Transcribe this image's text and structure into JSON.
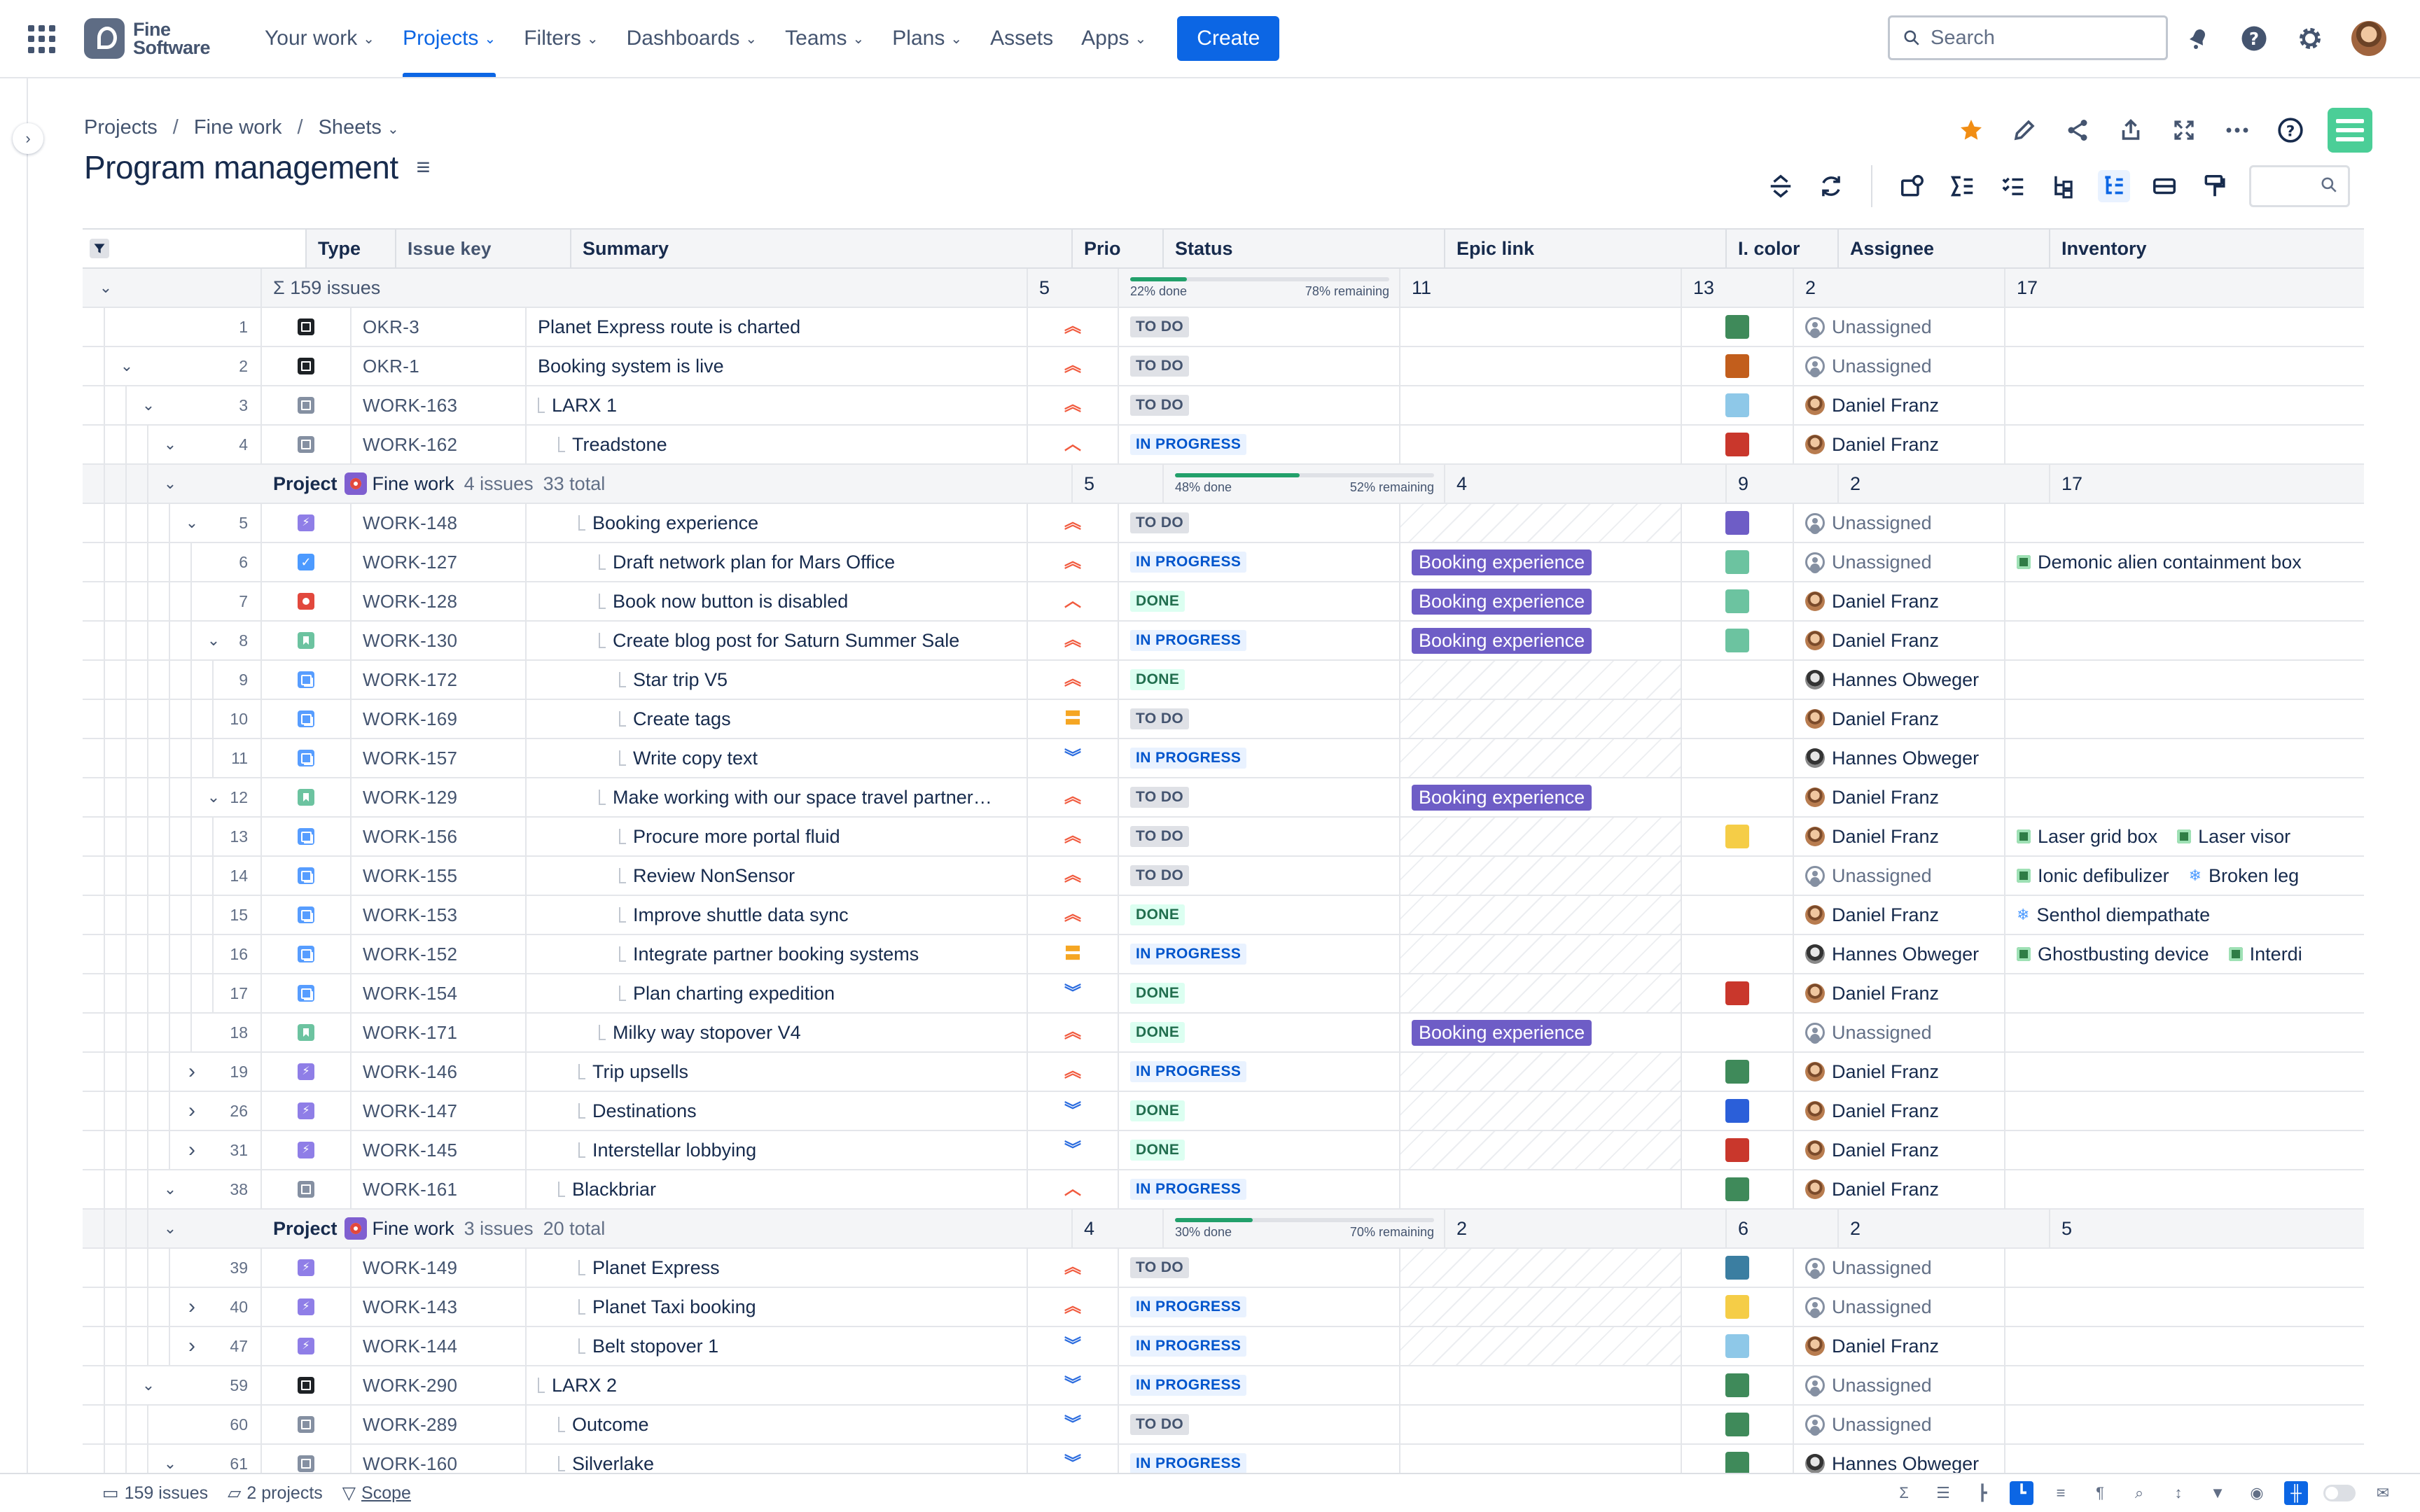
{
  "nav": {
    "brand": "Fine Software",
    "brand_line1": "Fine",
    "brand_line2": "Software",
    "items": [
      {
        "label": "Your work",
        "dropdown": true,
        "active": false
      },
      {
        "label": "Projects",
        "dropdown": true,
        "active": true
      },
      {
        "label": "Filters",
        "dropdown": true,
        "active": false
      },
      {
        "label": "Dashboards",
        "dropdown": true,
        "active": false
      },
      {
        "label": "Teams",
        "dropdown": true,
        "active": false
      },
      {
        "label": "Plans",
        "dropdown": true,
        "active": false
      },
      {
        "label": "Assets",
        "dropdown": false,
        "active": false
      },
      {
        "label": "Apps",
        "dropdown": true,
        "active": false
      }
    ],
    "create_label": "Create",
    "search_placeholder": "Search"
  },
  "breadcrumb": [
    "Projects",
    "Fine work",
    "Sheets"
  ],
  "page_title": "Program management",
  "columns": {
    "type": "Type",
    "key": "Issue key",
    "summary": "Summary",
    "prio": "Prio",
    "status": "Status",
    "epic": "Epic link",
    "color": "I. color",
    "assignee": "Assignee",
    "inventory": "Inventory"
  },
  "summary_row": {
    "issues": "Σ  159 issues",
    "prio": "5",
    "done": "22% done",
    "remaining": "78% remaining",
    "done_pct": 22,
    "epic": "11",
    "color": "13",
    "assignee": "2",
    "inventory": "17"
  },
  "groups": [
    {
      "label": "Project",
      "project": "Fine work",
      "issues": "4 issues",
      "total": "33 total",
      "prio": "5",
      "done": "48% done",
      "remaining": "52% remaining",
      "done_pct": 48,
      "epic": "4",
      "color": "9",
      "assignee": "2",
      "inventory": "17"
    },
    {
      "label": "Project",
      "project": "Fine work",
      "issues": "3 issues",
      "total": "20 total",
      "prio": "4",
      "done": "30% done",
      "remaining": "70% remaining",
      "done_pct": 30,
      "epic": "2",
      "color": "6",
      "assignee": "2",
      "inventory": "5"
    }
  ],
  "rows": [
    {
      "num": "1",
      "type": "okr",
      "key": "OKR-3",
      "summary": "Planet Express route is charted",
      "depth": 0,
      "prio": "high",
      "status": "TO DO",
      "epic": "",
      "color": "#3f8a5a",
      "assignee": "Unassigned",
      "inventory": [],
      "toggle": ""
    },
    {
      "num": "2",
      "type": "okr",
      "key": "OKR-1",
      "summary": "Booking system is live",
      "depth": 0,
      "prio": "high",
      "status": "TO DO",
      "epic": "",
      "color": "#c25e1c",
      "assignee": "Unassigned",
      "inventory": [],
      "toggle": "open"
    },
    {
      "num": "3",
      "type": "work",
      "key": "WORK-163",
      "summary": "LARX 1",
      "depth": 1,
      "prio": "high",
      "status": "TO DO",
      "epic": "",
      "color": "#8ec8e8",
      "assignee": "Daniel Franz",
      "inventory": [],
      "toggle": "open"
    },
    {
      "num": "4",
      "type": "work",
      "key": "WORK-162",
      "summary": "Treadstone",
      "depth": 2,
      "prio": "medium-high",
      "status": "IN PROGRESS",
      "epic": "",
      "color": "#c9372c",
      "assignee": "Daniel Franz",
      "inventory": [],
      "toggle": "open"
    },
    {
      "group": 0
    },
    {
      "num": "5",
      "type": "epic",
      "key": "WORK-148",
      "summary": "Booking experience",
      "depth": 3,
      "prio": "high",
      "status": "TO DO",
      "epic": "",
      "color": "#6e5dc6",
      "assignee": "Unassigned",
      "inventory": [],
      "toggle": "open"
    },
    {
      "num": "6",
      "type": "task",
      "key": "WORK-127",
      "summary": "Draft network plan for Mars Office",
      "depth": 4,
      "prio": "high",
      "status": "IN PROGRESS",
      "epic": "Booking experience",
      "color": "#6cc3a0",
      "assignee": "Unassigned",
      "inventory": [
        {
          "icon": "box",
          "label": "Demonic alien containment box"
        }
      ],
      "toggle": ""
    },
    {
      "num": "7",
      "type": "bug",
      "key": "WORK-128",
      "summary": "Book now button is disabled",
      "depth": 4,
      "prio": "medium-high",
      "status": "DONE",
      "epic": "Booking experience",
      "color": "#6cc3a0",
      "assignee": "Daniel Franz",
      "inventory": [],
      "toggle": ""
    },
    {
      "num": "8",
      "type": "story",
      "key": "WORK-130",
      "summary": "Create blog post for Saturn Summer Sale",
      "depth": 4,
      "prio": "high",
      "status": "IN PROGRESS",
      "epic": "Booking experience",
      "color": "#6cc3a0",
      "assignee": "Daniel Franz",
      "inventory": [],
      "toggle": "open"
    },
    {
      "num": "9",
      "type": "sub",
      "key": "WORK-172",
      "summary": "Star trip V5",
      "depth": 5,
      "prio": "high",
      "status": "DONE",
      "epic": "",
      "color": "",
      "assignee": "Hannes Obweger",
      "inventory": [],
      "toggle": ""
    },
    {
      "num": "10",
      "type": "sub",
      "key": "WORK-169",
      "summary": "Create tags",
      "depth": 5,
      "prio": "medium",
      "status": "TO DO",
      "epic": "",
      "color": "",
      "assignee": "Daniel Franz",
      "inventory": [],
      "toggle": ""
    },
    {
      "num": "11",
      "type": "sub",
      "key": "WORK-157",
      "summary": "Write copy text",
      "depth": 5,
      "prio": "low",
      "status": "IN PROGRESS",
      "epic": "",
      "color": "",
      "assignee": "Hannes Obweger",
      "inventory": [],
      "toggle": ""
    },
    {
      "num": "12",
      "type": "story",
      "key": "WORK-129",
      "summary": "Make working with our space travel partner…",
      "depth": 4,
      "prio": "high",
      "status": "TO DO",
      "epic": "Booking experience",
      "color": "",
      "assignee": "Daniel Franz",
      "inventory": [],
      "toggle": "open"
    },
    {
      "num": "13",
      "type": "sub",
      "key": "WORK-156",
      "summary": "Procure more portal fluid",
      "depth": 5,
      "prio": "high",
      "status": "TO DO",
      "epic": "",
      "color": "#f5cd47",
      "assignee": "Daniel Franz",
      "inventory": [
        {
          "icon": "box",
          "label": "Laser grid box"
        },
        {
          "icon": "box",
          "label": "Laser visor"
        }
      ],
      "toggle": ""
    },
    {
      "num": "14",
      "type": "sub",
      "key": "WORK-155",
      "summary": "Review NonSensor",
      "depth": 5,
      "prio": "high",
      "status": "TO DO",
      "epic": "",
      "color": "",
      "assignee": "Unassigned",
      "inventory": [
        {
          "icon": "box",
          "label": "Ionic defibulizer"
        },
        {
          "icon": "snow",
          "label": "Broken leg"
        }
      ],
      "toggle": ""
    },
    {
      "num": "15",
      "type": "sub",
      "key": "WORK-153",
      "summary": "Improve shuttle data sync",
      "depth": 5,
      "prio": "high",
      "status": "DONE",
      "epic": "",
      "color": "",
      "assignee": "Daniel Franz",
      "inventory": [
        {
          "icon": "snow",
          "label": "Senthol diempathate"
        }
      ],
      "toggle": ""
    },
    {
      "num": "16",
      "type": "sub",
      "key": "WORK-152",
      "summary": "Integrate partner booking systems",
      "depth": 5,
      "prio": "medium",
      "status": "IN PROGRESS",
      "epic": "",
      "color": "",
      "assignee": "Hannes Obweger",
      "inventory": [
        {
          "icon": "box",
          "label": "Ghostbusting device"
        },
        {
          "icon": "box",
          "label": "Interdi"
        }
      ],
      "toggle": ""
    },
    {
      "num": "17",
      "type": "sub",
      "key": "WORK-154",
      "summary": "Plan charting expedition",
      "depth": 5,
      "prio": "low",
      "status": "DONE",
      "epic": "",
      "color": "#c9372c",
      "assignee": "Daniel Franz",
      "inventory": [],
      "toggle": ""
    },
    {
      "num": "18",
      "type": "story",
      "key": "WORK-171",
      "summary": "Milky way stopover V4",
      "depth": 4,
      "prio": "high",
      "status": "DONE",
      "epic": "Booking experience",
      "color": "",
      "assignee": "Unassigned",
      "inventory": [],
      "toggle": ""
    },
    {
      "num": "19",
      "type": "epic",
      "key": "WORK-146",
      "summary": "Trip upsells",
      "depth": 3,
      "prio": "high",
      "status": "IN PROGRESS",
      "epic": "",
      "color": "#3f8a5a",
      "assignee": "Daniel Franz",
      "inventory": [],
      "toggle": "closed"
    },
    {
      "num": "26",
      "type": "epic",
      "key": "WORK-147",
      "summary": "Destinations",
      "depth": 3,
      "prio": "low",
      "status": "DONE",
      "epic": "",
      "color": "#2b5fd9",
      "assignee": "Daniel Franz",
      "inventory": [],
      "toggle": "closed"
    },
    {
      "num": "31",
      "type": "epic",
      "key": "WORK-145",
      "summary": "Interstellar lobbying",
      "depth": 3,
      "prio": "low",
      "status": "DONE",
      "epic": "",
      "color": "#c9372c",
      "assignee": "Daniel Franz",
      "inventory": [],
      "toggle": "closed"
    },
    {
      "num": "38",
      "type": "work",
      "key": "WORK-161",
      "summary": "Blackbriar",
      "depth": 2,
      "prio": "medium-high",
      "status": "IN PROGRESS",
      "epic": "",
      "color": "#3f8a5a",
      "assignee": "Daniel Franz",
      "inventory": [],
      "toggle": "open"
    },
    {
      "group": 1
    },
    {
      "num": "39",
      "type": "epic",
      "key": "WORK-149",
      "summary": "Planet Express",
      "depth": 3,
      "prio": "high",
      "status": "TO DO",
      "epic": "",
      "color": "#3b7ea1",
      "assignee": "Unassigned",
      "inventory": [],
      "toggle": ""
    },
    {
      "num": "40",
      "type": "epic",
      "key": "WORK-143",
      "summary": "Planet Taxi booking",
      "depth": 3,
      "prio": "high",
      "status": "IN PROGRESS",
      "epic": "",
      "color": "#f5cd47",
      "assignee": "Unassigned",
      "inventory": [],
      "toggle": "closed"
    },
    {
      "num": "47",
      "type": "epic",
      "key": "WORK-144",
      "summary": "Belt stopover 1",
      "depth": 3,
      "prio": "low",
      "status": "IN PROGRESS",
      "epic": "",
      "color": "#8ec8e8",
      "assignee": "Daniel Franz",
      "inventory": [],
      "toggle": "closed"
    },
    {
      "num": "59",
      "type": "okr",
      "key": "WORK-290",
      "summary": "LARX 2",
      "depth": 1,
      "prio": "low",
      "status": "IN PROGRESS",
      "epic": "",
      "color": "#3f8a5a",
      "assignee": "Unassigned",
      "inventory": [],
      "toggle": "open"
    },
    {
      "num": "60",
      "type": "work",
      "key": "WORK-289",
      "summary": "Outcome",
      "depth": 2,
      "prio": "low",
      "status": "TO DO",
      "epic": "",
      "color": "#3f8a5a",
      "assignee": "Unassigned",
      "inventory": [],
      "toggle": ""
    },
    {
      "num": "61",
      "type": "work",
      "key": "WORK-160",
      "summary": "Silverlake",
      "depth": 2,
      "prio": "low",
      "status": "IN PROGRESS",
      "epic": "",
      "color": "#3f8a5a",
      "assignee": "Hannes Obweger",
      "inventory": [],
      "toggle": "open"
    }
  ],
  "footer": {
    "issues": "159 issues",
    "projects": "2 projects",
    "scope": "Scope"
  }
}
